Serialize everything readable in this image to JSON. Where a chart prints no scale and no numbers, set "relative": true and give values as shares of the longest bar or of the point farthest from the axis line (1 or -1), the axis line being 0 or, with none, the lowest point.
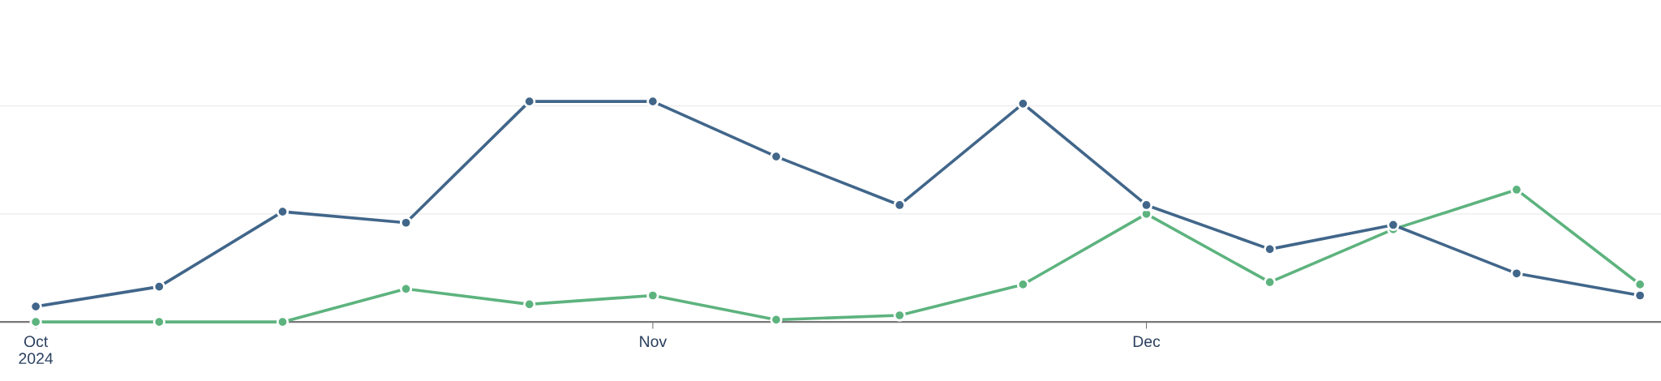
{
  "chart_data": {
    "type": "line",
    "relative": true,
    "categories": [
      "Oct\n2024",
      null,
      null,
      null,
      null,
      "Nov",
      null,
      null,
      null,
      "Dec",
      null,
      null,
      null,
      null
    ],
    "series": [
      {
        "color": "#41668a",
        "values": [
          0.07,
          0.16,
          0.5,
          0.45,
          1,
          1,
          0.75,
          0.53,
          0.99,
          0.53,
          0.33,
          0.44,
          0.22,
          0.12
        ]
      },
      {
        "color": "#5db37e",
        "values": [
          0,
          0,
          0,
          0.15,
          0.08,
          0.12,
          0.01,
          0.03,
          0.17,
          0.49,
          0.18,
          0.42,
          0.6,
          0.17
        ]
      }
    ],
    "ref_lines": [
      {
        "axis": "y",
        "value": 0.49,
        "color": "#ebebeb"
      },
      {
        "axis": "y",
        "value": 0.98,
        "color": "#ebebeb"
      }
    ],
    "marker": "circle",
    "line_style": "solid",
    "tick_labels": "x"
  }
}
